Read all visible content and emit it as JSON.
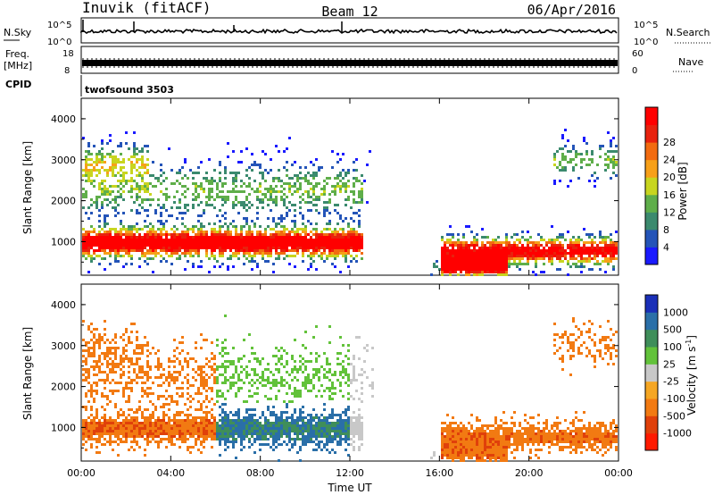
{
  "header": {
    "station": "Inuvik (fitACF)",
    "beam": "Beam 12",
    "date": "06/Apr/2016"
  },
  "strip": {
    "nsky_label": "N.Sky",
    "nsky_ticks": [
      "10^5",
      "10^0"
    ],
    "nsearch_label": "N.Search",
    "nsearch_ticks": [
      "10^5",
      "10^0"
    ],
    "freq_label": "Freq.",
    "freq_unit": "[MHz]",
    "freq_ticks": [
      "18",
      "8"
    ],
    "nave_label": "Nave",
    "nave_ticks": [
      "60",
      "0"
    ],
    "cpid_label": "CPID",
    "cpid_value": "twofsound 3503"
  },
  "chart_data": [
    {
      "type": "heatmap",
      "name": "power",
      "ylabel": "Slant Range [km]",
      "ylim": [
        180,
        4500
      ],
      "yticks": [
        "1000",
        "2000",
        "3000",
        "4000"
      ],
      "xlim": [
        0,
        24
      ],
      "colorbar_label": "Power [dB]",
      "colorbar_ticks": [
        "4",
        "8",
        "12",
        "16",
        "20",
        "24",
        "28"
      ],
      "colorbar_colors": [
        "#1a1aff",
        "#2454b8",
        "#3b8a6e",
        "#5fae4a",
        "#c8d51f",
        "#f7a019",
        "#f26b10",
        "#e8220e",
        "#ff0000"
      ]
    },
    {
      "type": "heatmap",
      "name": "velocity",
      "ylabel": "Slant Range [km]",
      "ylim": [
        180,
        4500
      ],
      "yticks": [
        "1000",
        "2000",
        "3000",
        "4000"
      ],
      "xlim": [
        0,
        24
      ],
      "xlabel": "Time UT",
      "xticks": [
        "00:00",
        "04:00",
        "08:00",
        "12:00",
        "16:00",
        "20:00",
        "00:00"
      ],
      "colorbar_label": "Velocity [m s",
      "colorbar_label_sup": "-1",
      "colorbar_label_end": "]",
      "colorbar_ticks": [
        "1000",
        "500",
        "100",
        "25",
        "-25",
        "-100",
        "-500",
        "-1000"
      ],
      "colorbar_colors": [
        "#1a2fb8",
        "#2a6fa8",
        "#3f8e5a",
        "#62c23a",
        "#c8c8c8",
        "#f5a623",
        "#f27a12",
        "#e0400a",
        "#ff1a00"
      ]
    }
  ]
}
